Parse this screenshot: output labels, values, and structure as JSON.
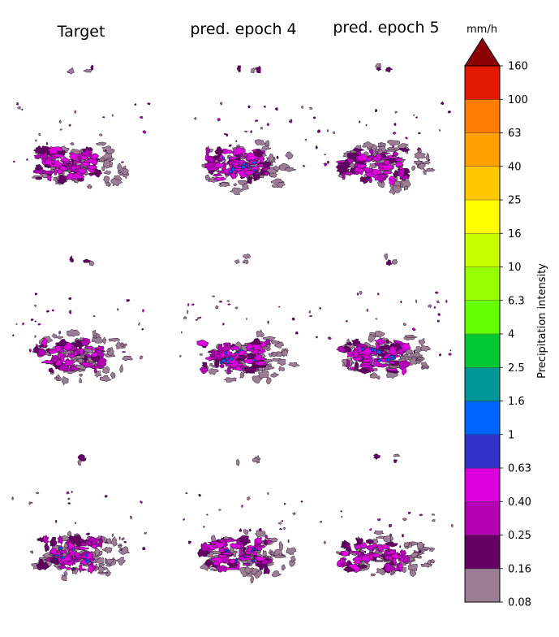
{
  "chart_data": {
    "type": "heatmap",
    "columns": [
      "Target",
      "pred. epoch 4",
      "pred. epoch 5"
    ],
    "rows": 3,
    "colorbar": {
      "unit": "mm/h",
      "label": "Precipitation intensity",
      "extend": "max",
      "ticks": [
        "0.08",
        "0.16",
        "0.25",
        "0.40",
        "0.63",
        "1",
        "1.6",
        "2.5",
        "4",
        "6.3",
        "10",
        "16",
        "25",
        "40",
        "63",
        "100",
        "160"
      ],
      "colors": [
        "#9c7e94",
        "#640064",
        "#b400b4",
        "#dc00dc",
        "#3232c8",
        "#0064ff",
        "#009696",
        "#00c832",
        "#64ff00",
        "#96ff00",
        "#c8ff00",
        "#ffff00",
        "#ffc800",
        "#ffa000",
        "#ff7d00",
        "#e11900"
      ],
      "extend_color": "#8b0000"
    },
    "panels": [
      {
        "row": 0,
        "column": "Target",
        "max_level": "0.63"
      },
      {
        "row": 0,
        "column": "pred. epoch 4",
        "max_level": "1.6"
      },
      {
        "row": 0,
        "column": "pred. epoch 5",
        "max_level": "0.63"
      },
      {
        "row": 1,
        "column": "Target",
        "max_level": "0.63"
      },
      {
        "row": 1,
        "column": "pred. epoch 4",
        "max_level": "1.6"
      },
      {
        "row": 1,
        "column": "pred. epoch 5",
        "max_level": "1.6"
      },
      {
        "row": 2,
        "column": "Target",
        "max_level": "1.6"
      },
      {
        "row": 2,
        "column": "pred. epoch 4",
        "max_level": "1"
      },
      {
        "row": 2,
        "column": "pred. epoch 5",
        "max_level": "0.63"
      }
    ]
  }
}
